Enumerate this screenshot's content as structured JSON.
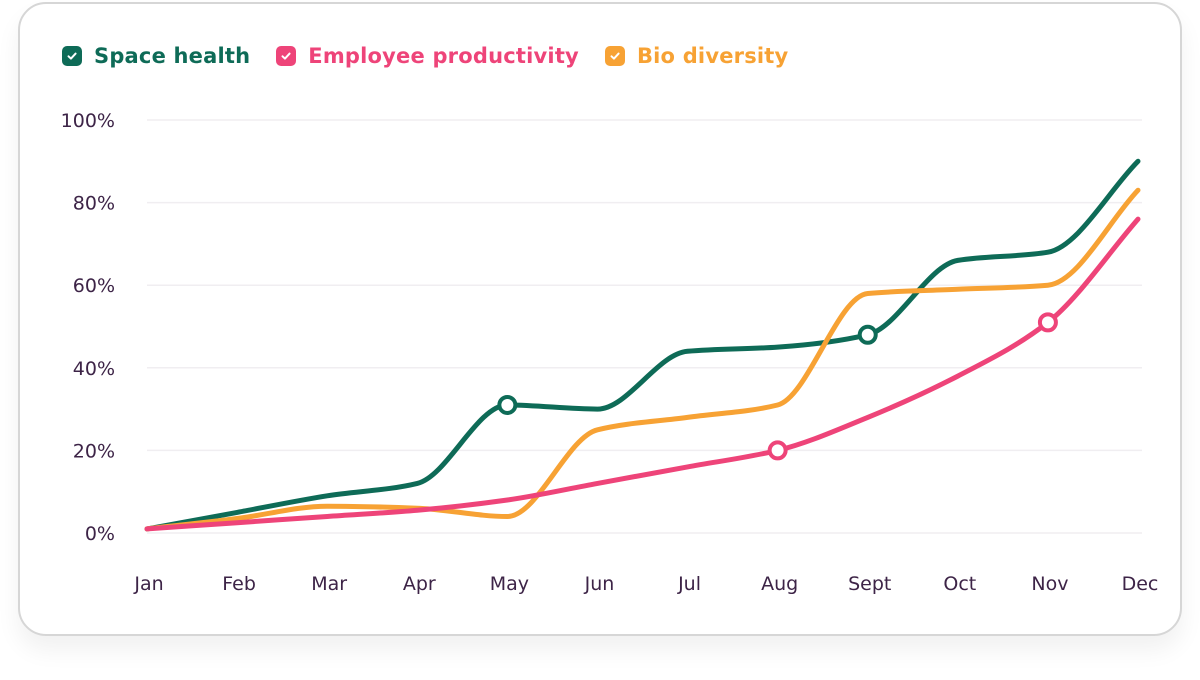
{
  "chart_data": {
    "type": "line",
    "categories": [
      "Jan",
      "Feb",
      "Mar",
      "Apr",
      "May",
      "Jun",
      "Jul",
      "Aug",
      "Sept",
      "Oct",
      "Nov",
      "Dec"
    ],
    "y_ticks": [
      "0%",
      "20%",
      "40%",
      "60%",
      "80%",
      "100%"
    ],
    "ylim": [
      0,
      100
    ],
    "grid": "horizontal",
    "legend_position": "top-left",
    "series": [
      {
        "name": "Space health",
        "color": "#0e6b57",
        "values": [
          1,
          5,
          9,
          12,
          31,
          30,
          44,
          45,
          48,
          66,
          68,
          90
        ],
        "marker_indices": [
          4,
          8
        ]
      },
      {
        "name": "Employee productivity",
        "color": "#ee4479",
        "values": [
          1,
          2.5,
          4,
          5.5,
          8,
          12,
          16,
          20,
          28,
          38,
          51,
          76
        ],
        "marker_indices": [
          7,
          10
        ]
      },
      {
        "name": "Bio diversity",
        "color": "#f7a234",
        "values": [
          1,
          3.5,
          6.5,
          6,
          4,
          25,
          28,
          31,
          58,
          59,
          60,
          83
        ],
        "marker_indices": []
      }
    ]
  }
}
